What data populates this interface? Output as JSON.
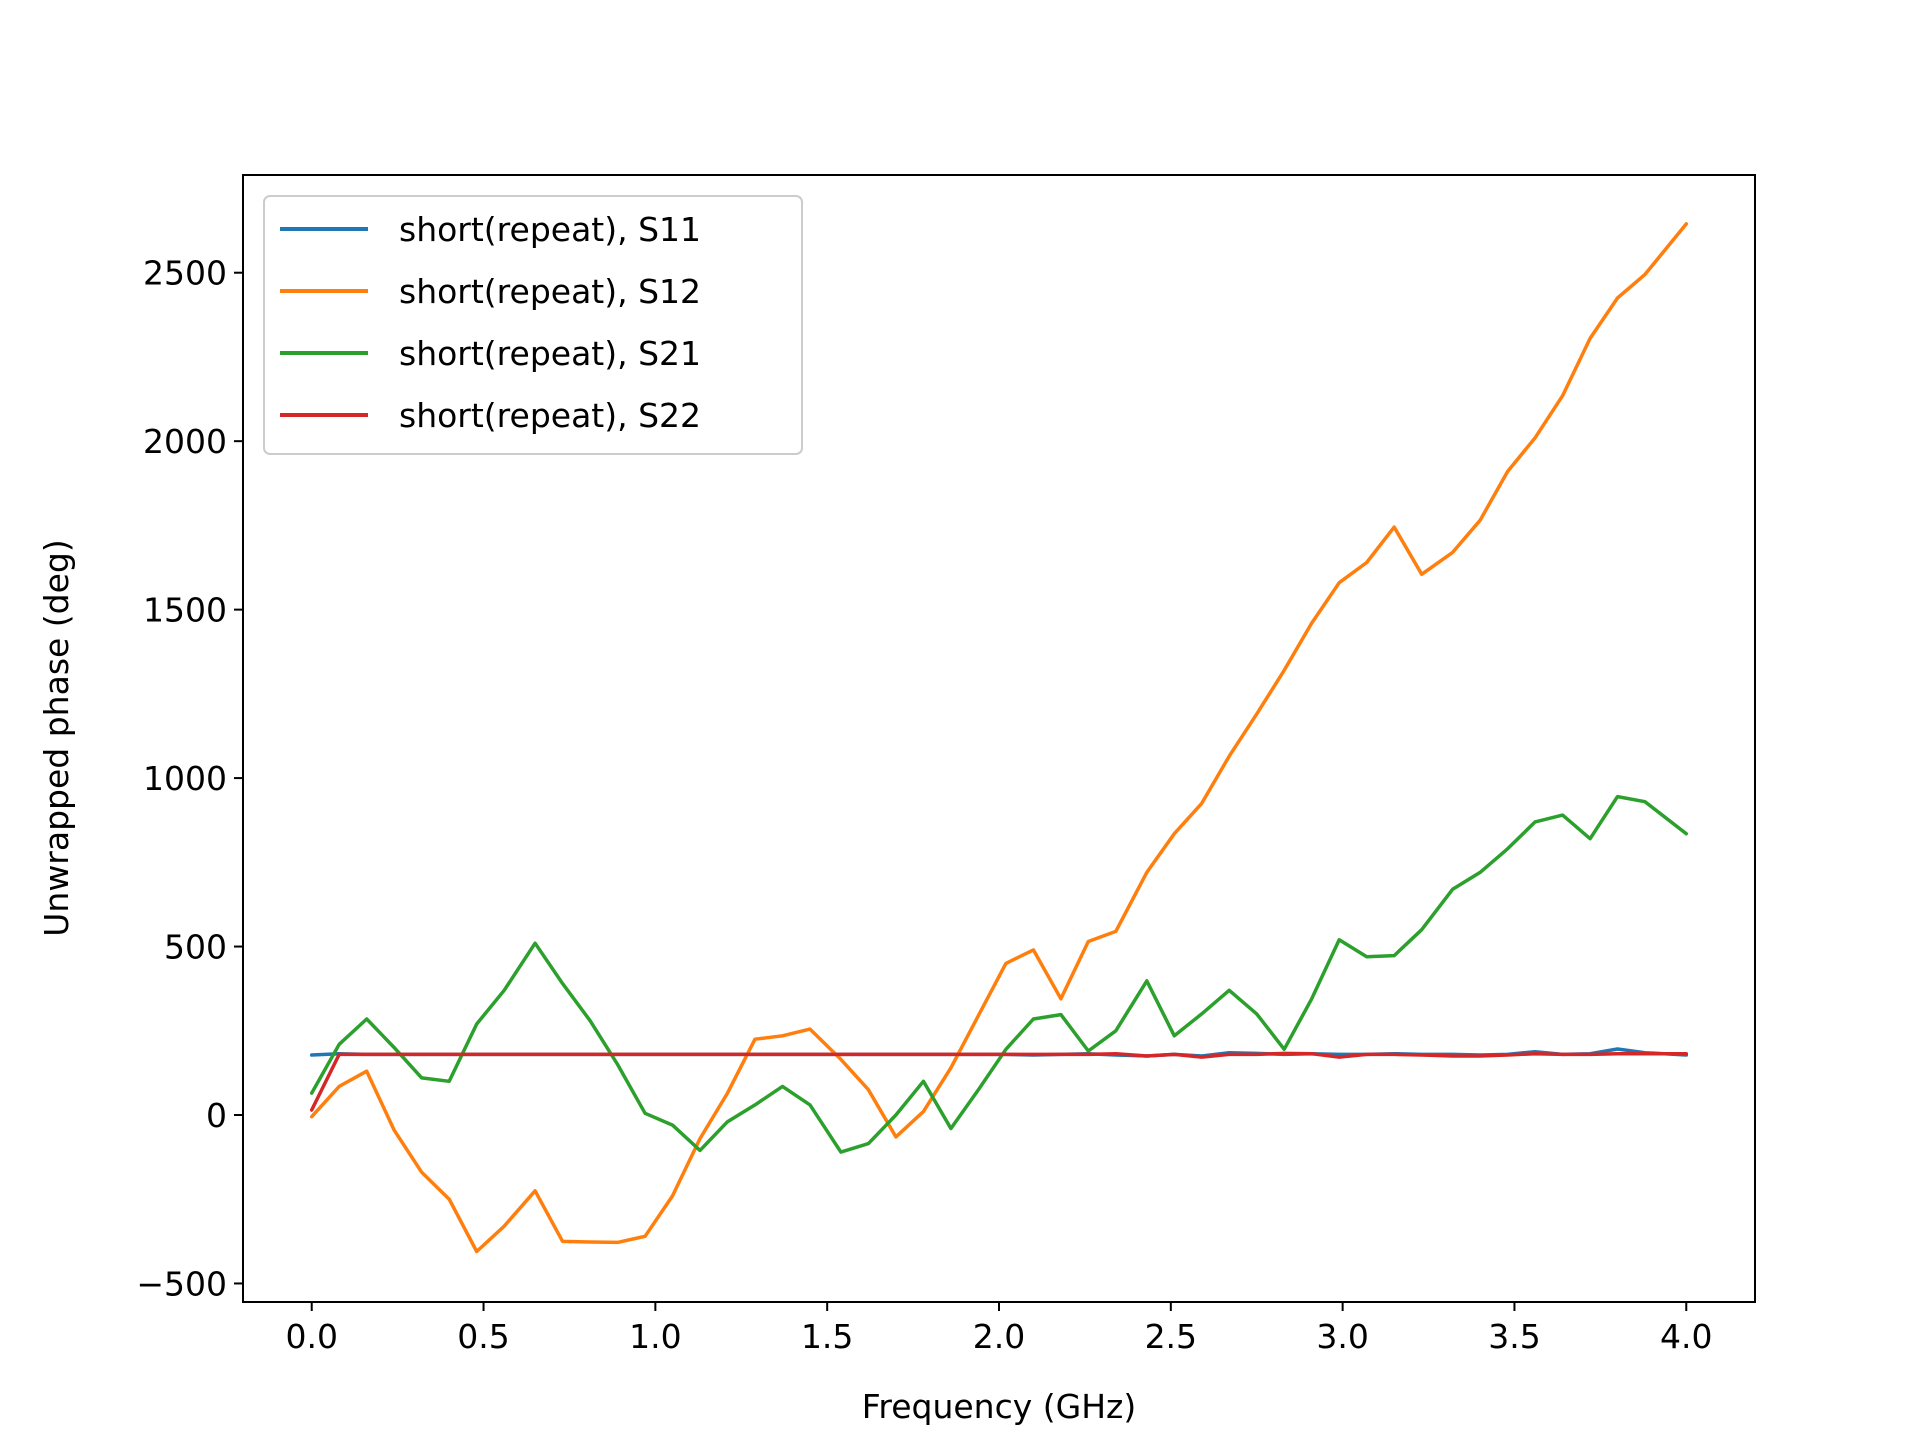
{
  "chart_data": {
    "type": "line",
    "xlabel": "Frequency (GHz)",
    "ylabel": "Unwrapped phase (deg)",
    "xlim": [
      -0.2,
      4.2
    ],
    "ylim": [
      -555,
      2790
    ],
    "xticks": [
      "0.0",
      "0.5",
      "1.0",
      "1.5",
      "2.0",
      "2.5",
      "3.0",
      "3.5",
      "4.0"
    ],
    "yticks": [
      "−500",
      "0",
      "500",
      "1000",
      "1500",
      "2000",
      "2500"
    ],
    "ytick_values": [
      -500,
      0,
      500,
      1000,
      1500,
      2000,
      2500
    ],
    "legend_position": "upper-left",
    "grid": false,
    "x": [
      0.0,
      0.08,
      0.16,
      0.24,
      0.32,
      0.4,
      0.48,
      0.56,
      0.65,
      0.73,
      0.81,
      0.89,
      0.97,
      1.05,
      1.13,
      1.21,
      1.29,
      1.37,
      1.45,
      1.54,
      1.62,
      1.7,
      1.78,
      1.86,
      1.94,
      2.02,
      2.1,
      2.18,
      2.26,
      2.34,
      2.43,
      2.51,
      2.59,
      2.67,
      2.75,
      2.83,
      2.91,
      2.99,
      3.07,
      3.15,
      3.23,
      3.32,
      3.4,
      3.48,
      3.56,
      3.64,
      3.72,
      3.8,
      3.88,
      4.0
    ],
    "series": [
      {
        "name": "short(repeat), S11",
        "color": "#1f77b4",
        "values": [
          178,
          182,
          180,
          180,
          180,
          180,
          180,
          180,
          180,
          180,
          180,
          180,
          180,
          180,
          180,
          180,
          180,
          180,
          180,
          180,
          180,
          180,
          180,
          180,
          180,
          180,
          178,
          180,
          182,
          178,
          175,
          180,
          175,
          185,
          183,
          180,
          182,
          180,
          180,
          182,
          180,
          180,
          178,
          180,
          188,
          180,
          182,
          196,
          185,
          178
        ]
      },
      {
        "name": "short(repeat), S12",
        "color": "#ff7f0e",
        "values": [
          -5,
          85,
          130,
          -45,
          -170,
          -250,
          -405,
          -330,
          -225,
          -375,
          -377,
          -378,
          -360,
          -240,
          -70,
          65,
          225,
          235,
          255,
          165,
          75,
          -65,
          10,
          140,
          295,
          450,
          490,
          345,
          515,
          545,
          720,
          835,
          925,
          1065,
          1190,
          1320,
          1460,
          1580,
          1640,
          1745,
          1605,
          1670,
          1765,
          1910,
          2010,
          2135,
          2305,
          2425,
          2495,
          2645
        ]
      },
      {
        "name": "short(repeat), S21",
        "color": "#2ca02c",
        "values": [
          65,
          210,
          285,
          200,
          110,
          100,
          270,
          370,
          510,
          390,
          280,
          150,
          5,
          -30,
          -105,
          -20,
          30,
          85,
          30,
          -110,
          -85,
          0,
          100,
          -40,
          75,
          195,
          285,
          298,
          190,
          250,
          398,
          235,
          300,
          370,
          300,
          195,
          345,
          520,
          470,
          473,
          550,
          670,
          720,
          790,
          870,
          890,
          820,
          945,
          930,
          835
        ]
      },
      {
        "name": "short(repeat), S22",
        "color": "#d62728",
        "values": [
          15,
          180,
          180,
          180,
          180,
          180,
          180,
          180,
          180,
          180,
          180,
          180,
          180,
          180,
          180,
          180,
          180,
          180,
          180,
          180,
          180,
          180,
          180,
          180,
          180,
          180,
          180,
          180,
          180,
          182,
          175,
          180,
          172,
          180,
          180,
          183,
          182,
          172,
          180,
          180,
          178,
          175,
          175,
          178,
          182,
          180,
          180,
          182,
          182,
          182
        ]
      }
    ]
  }
}
